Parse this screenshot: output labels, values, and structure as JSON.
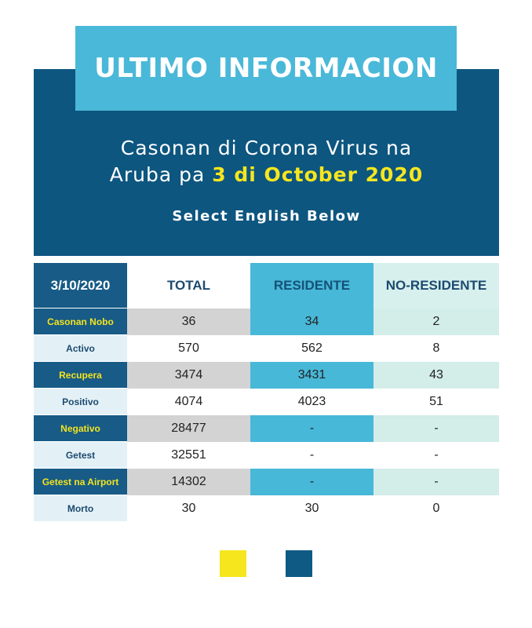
{
  "banner": {
    "title": "ULTIMO INFORMACION"
  },
  "subtitle": {
    "line1": "Casonan di Corona Virus na",
    "line2_prefix": "Aruba pa ",
    "line2_date": "3 di October 2020"
  },
  "select_english": "Select English Below",
  "table": {
    "headers": [
      "3/10/2020",
      "TOTAL",
      "RESIDENTE",
      "NO-RESIDENTE"
    ],
    "rows": [
      {
        "label": "Casonan Nobo",
        "total": "36",
        "residente": "34",
        "no_residente": "2"
      },
      {
        "label": "Activo",
        "total": "570",
        "residente": "562",
        "no_residente": "8"
      },
      {
        "label": "Recupera",
        "total": "3474",
        "residente": "3431",
        "no_residente": "43"
      },
      {
        "label": "Positivo",
        "total": "4074",
        "residente": "4023",
        "no_residente": "51"
      },
      {
        "label": "Negativo",
        "total": "28477",
        "residente": "-",
        "no_residente": "-"
      },
      {
        "label": "Getest",
        "total": "32551",
        "residente": "-",
        "no_residente": "-"
      },
      {
        "label": "Getest na Airport",
        "total": "14302",
        "residente": "-",
        "no_residente": "-"
      },
      {
        "label": "Morto",
        "total": "30",
        "residente": "30",
        "no_residente": "0"
      }
    ]
  },
  "language_swatches": [
    {
      "color": "#f6e61e"
    },
    {
      "color": "#0f5a84"
    }
  ]
}
